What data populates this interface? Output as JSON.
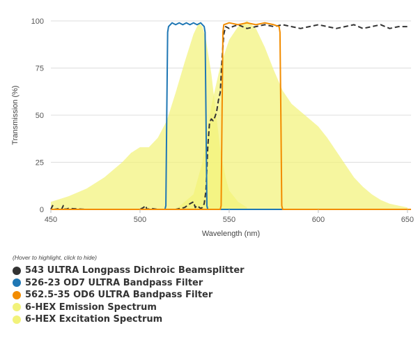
{
  "chart_data": {
    "type": "line",
    "xlabel": "Wavelength (nm)",
    "ylabel": "Transmission (%)",
    "xlim": [
      450,
      652
    ],
    "ylim": [
      0,
      100
    ],
    "xticks": [
      450,
      500,
      550,
      600,
      650
    ],
    "yticks": [
      0,
      25,
      50,
      75,
      100
    ],
    "grid": "horizontal",
    "legend_position": "bottom-left",
    "series": [
      {
        "name": "543 ULTRA Longpass Dichroic Beamsplitter",
        "color": "#333333",
        "style": "dashed",
        "x": [
          450,
          451,
          452,
          455,
          456,
          457,
          458,
          460,
          470,
          480,
          490,
          500,
          502,
          503,
          504,
          506,
          510,
          520,
          525,
          528,
          530,
          531,
          532,
          534,
          535,
          536,
          537,
          538,
          539,
          540,
          541,
          542,
          543,
          544,
          545,
          546,
          547,
          548,
          550,
          552,
          555,
          560,
          565,
          570,
          575,
          580,
          585,
          590,
          595,
          600,
          605,
          610,
          615,
          620,
          625,
          630,
          635,
          640,
          645,
          650
        ],
        "values": [
          0,
          2,
          0,
          0.5,
          0,
          2,
          0,
          0.5,
          0,
          0,
          0,
          0,
          1,
          2,
          0,
          0.5,
          0,
          0,
          1,
          3,
          4,
          1,
          2,
          0.5,
          1,
          3,
          10,
          33,
          46,
          48,
          47,
          49,
          52,
          58,
          62,
          80,
          93,
          97,
          96,
          97,
          98,
          96,
          97,
          98,
          97,
          98,
          97,
          96,
          97,
          98,
          97,
          96,
          97,
          98,
          96,
          97,
          98,
          96,
          97,
          97
        ]
      },
      {
        "name": "526-23 OD7 ULTRA Bandpass Filter",
        "color": "#1f77b4",
        "style": "solid",
        "x": [
          450,
          514,
          514.5,
          515,
          515.5,
          516,
          518,
          520,
          522,
          524,
          526,
          528,
          530,
          532,
          534,
          536,
          536.5,
          537,
          537.5,
          538,
          652
        ],
        "values": [
          0,
          0,
          2,
          50,
          94,
          97,
          99,
          98,
          99,
          98,
          99,
          98,
          99,
          98,
          99,
          97,
          94,
          50,
          2,
          0,
          0
        ]
      },
      {
        "name": "562.5-35 OD6 ULTRA Bandpass Filter",
        "color": "#f28c00",
        "style": "solid",
        "x": [
          450,
          545,
          545.5,
          546,
          546.5,
          547,
          550,
          555,
          560,
          565,
          570,
          575,
          578,
          578.5,
          579,
          579.5,
          580,
          652
        ],
        "values": [
          0,
          0,
          2,
          50,
          94,
          98,
          99,
          98,
          99,
          98,
          99,
          98,
          97,
          94,
          50,
          2,
          0,
          0
        ]
      },
      {
        "name": "6-HEX Emission Spectrum",
        "color": "#f2f27a",
        "style": "area",
        "x": [
          520,
          530,
          535,
          540,
          545,
          550,
          555,
          560,
          565,
          570,
          575,
          580,
          585,
          590,
          595,
          600,
          605,
          610,
          615,
          620,
          625,
          630,
          635,
          640,
          645,
          650
        ],
        "values": [
          0,
          8,
          25,
          55,
          76,
          90,
          97,
          100,
          96,
          86,
          74,
          63,
          56,
          52,
          48,
          44,
          38,
          31,
          24,
          17,
          12,
          8,
          5,
          3,
          2,
          1
        ]
      },
      {
        "name": "6-HEX Excitation Spectrum",
        "color": "#f2f27a",
        "style": "area",
        "x": [
          450,
          460,
          470,
          480,
          490,
          495,
          500,
          505,
          510,
          515,
          520,
          525,
          530,
          533,
          535,
          537,
          540,
          543,
          545,
          548,
          550,
          555,
          560
        ],
        "values": [
          4,
          7,
          11,
          17,
          25,
          30,
          33,
          33,
          38,
          47,
          62,
          78,
          93,
          99,
          97,
          90,
          72,
          48,
          32,
          17,
          10,
          4,
          1
        ]
      }
    ]
  },
  "legend": {
    "hint": "(Hover to highlight, click to hide)"
  }
}
